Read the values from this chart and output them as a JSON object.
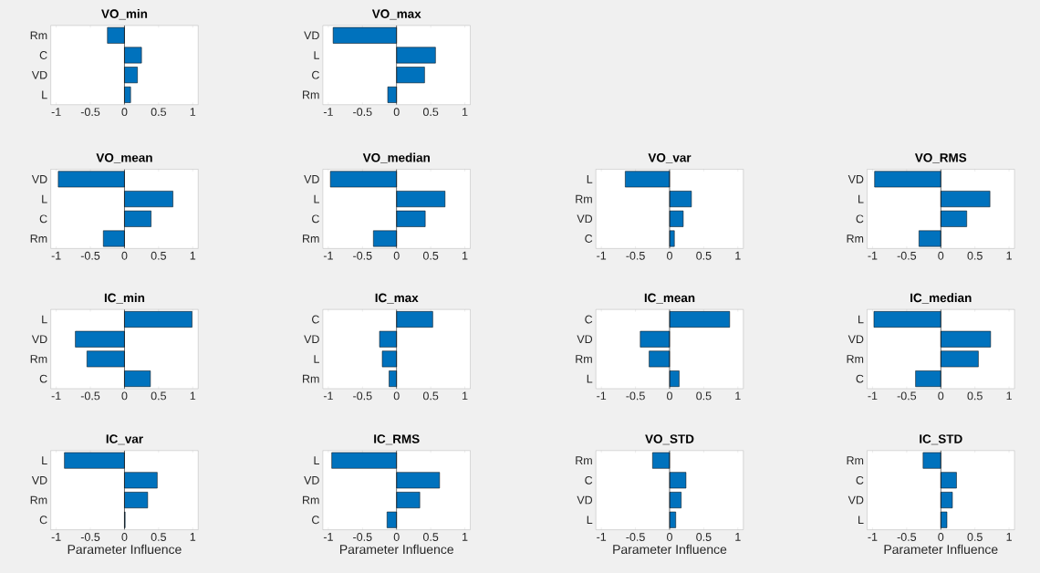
{
  "chart_data": [
    {
      "type": "bar",
      "orientation": "horizontal",
      "title": "VO_min",
      "categories": [
        "Rm",
        "C",
        "VD",
        "L"
      ],
      "values": [
        -0.25,
        0.25,
        0.19,
        0.09
      ],
      "color": "#0072bd",
      "xlim": [
        -1.08,
        1.08
      ],
      "xticks": [
        -1,
        -0.5,
        0,
        0.5,
        1
      ]
    },
    {
      "type": "bar",
      "orientation": "horizontal",
      "title": "VO_max",
      "categories": [
        "VD",
        "L",
        "C",
        "Rm"
      ],
      "values": [
        -0.93,
        0.57,
        0.41,
        -0.13
      ],
      "color": "#0072bd",
      "xlim": [
        -1.08,
        1.08
      ],
      "xticks": [
        -1,
        -0.5,
        0,
        0.5,
        1
      ]
    },
    {
      "type": "bar",
      "orientation": "horizontal",
      "title": "VO_mean",
      "categories": [
        "VD",
        "L",
        "C",
        "Rm"
      ],
      "values": [
        -0.97,
        0.71,
        0.39,
        -0.31
      ],
      "color": "#0072bd",
      "xlim": [
        -1.08,
        1.08
      ],
      "xticks": [
        -1,
        -0.5,
        0,
        0.5,
        1
      ]
    },
    {
      "type": "bar",
      "orientation": "horizontal",
      "title": "VO_median",
      "categories": [
        "VD",
        "L",
        "C",
        "Rm"
      ],
      "values": [
        -0.97,
        0.71,
        0.42,
        -0.34
      ],
      "color": "#0072bd",
      "xlim": [
        -1.08,
        1.08
      ],
      "xticks": [
        -1,
        -0.5,
        0,
        0.5,
        1
      ]
    },
    {
      "type": "bar",
      "orientation": "horizontal",
      "title": "VO_var",
      "categories": [
        "L",
        "Rm",
        "VD",
        "C"
      ],
      "values": [
        -0.65,
        0.32,
        0.2,
        0.07
      ],
      "color": "#0072bd",
      "xlim": [
        -1.08,
        1.08
      ],
      "xticks": [
        -1,
        -0.5,
        0,
        0.5,
        1
      ]
    },
    {
      "type": "bar",
      "orientation": "horizontal",
      "title": "VO_RMS",
      "categories": [
        "VD",
        "L",
        "C",
        "Rm"
      ],
      "values": [
        -0.97,
        0.72,
        0.38,
        -0.32
      ],
      "color": "#0072bd",
      "xlim": [
        -1.08,
        1.08
      ],
      "xticks": [
        -1,
        -0.5,
        0,
        0.5,
        1
      ]
    },
    {
      "type": "bar",
      "orientation": "horizontal",
      "title": "IC_min",
      "categories": [
        "L",
        "VD",
        "Rm",
        "C"
      ],
      "values": [
        0.99,
        -0.72,
        -0.55,
        0.38
      ],
      "color": "#0072bd",
      "xlim": [
        -1.08,
        1.08
      ],
      "xticks": [
        -1,
        -0.5,
        0,
        0.5,
        1
      ]
    },
    {
      "type": "bar",
      "orientation": "horizontal",
      "title": "IC_max",
      "categories": [
        "C",
        "VD",
        "L",
        "Rm"
      ],
      "values": [
        0.53,
        -0.25,
        -0.21,
        -0.11
      ],
      "color": "#0072bd",
      "xlim": [
        -1.08,
        1.08
      ],
      "xticks": [
        -1,
        -0.5,
        0,
        0.5,
        1
      ]
    },
    {
      "type": "bar",
      "orientation": "horizontal",
      "title": "IC_mean",
      "categories": [
        "C",
        "VD",
        "Rm",
        "L"
      ],
      "values": [
        0.88,
        -0.43,
        -0.3,
        0.14
      ],
      "color": "#0072bd",
      "xlim": [
        -1.08,
        1.08
      ],
      "xticks": [
        -1,
        -0.5,
        0,
        0.5,
        1
      ]
    },
    {
      "type": "bar",
      "orientation": "horizontal",
      "title": "IC_median",
      "categories": [
        "L",
        "VD",
        "Rm",
        "C"
      ],
      "values": [
        -0.98,
        0.73,
        0.55,
        -0.37
      ],
      "color": "#0072bd",
      "xlim": [
        -1.08,
        1.08
      ],
      "xticks": [
        -1,
        -0.5,
        0,
        0.5,
        1
      ]
    },
    {
      "type": "bar",
      "orientation": "horizontal",
      "title": "IC_var",
      "categories": [
        "L",
        "VD",
        "Rm",
        "C"
      ],
      "values": [
        -0.88,
        0.48,
        0.34,
        0.01
      ],
      "color": "#0072bd",
      "xlim": [
        -1.08,
        1.08
      ],
      "xticks": [
        -1,
        -0.5,
        0,
        0.5,
        1
      ],
      "xlabel": "Parameter Influence"
    },
    {
      "type": "bar",
      "orientation": "horizontal",
      "title": "IC_RMS",
      "categories": [
        "L",
        "VD",
        "Rm",
        "C"
      ],
      "values": [
        -0.95,
        0.63,
        0.34,
        -0.14
      ],
      "color": "#0072bd",
      "xlim": [
        -1.08,
        1.08
      ],
      "xticks": [
        -1,
        -0.5,
        0,
        0.5,
        1
      ],
      "xlabel": "Parameter Influence"
    },
    {
      "type": "bar",
      "orientation": "horizontal",
      "title": "VO_STD",
      "categories": [
        "Rm",
        "C",
        "VD",
        "L"
      ],
      "values": [
        -0.25,
        0.24,
        0.17,
        0.09
      ],
      "color": "#0072bd",
      "xlim": [
        -1.08,
        1.08
      ],
      "xticks": [
        -1,
        -0.5,
        0,
        0.5,
        1
      ],
      "xlabel": "Parameter Influence"
    },
    {
      "type": "bar",
      "orientation": "horizontal",
      "title": "IC_STD",
      "categories": [
        "Rm",
        "C",
        "VD",
        "L"
      ],
      "values": [
        -0.26,
        0.23,
        0.17,
        0.09
      ],
      "color": "#0072bd",
      "xlim": [
        -1.08,
        1.08
      ],
      "xticks": [
        -1,
        -0.5,
        0,
        0.5,
        1
      ],
      "xlabel": "Parameter Influence"
    }
  ]
}
